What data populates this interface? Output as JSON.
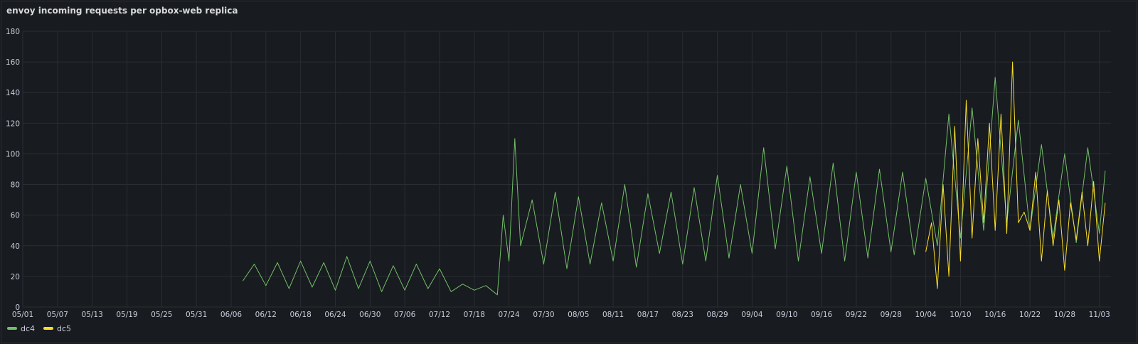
{
  "panel": {
    "title": "envoy incoming requests per opbox-web replica"
  },
  "colors": {
    "background": "#181b1f",
    "grid": "#2a2d33",
    "dc4": "#73bf69",
    "dc5": "#fade2a"
  },
  "legend": {
    "items": [
      {
        "label": "dc4",
        "color": "#73bf69"
      },
      {
        "label": "dc5",
        "color": "#fade2a"
      }
    ]
  },
  "chart_data": {
    "type": "line",
    "title": "envoy incoming requests per opbox-web replica",
    "xlabel": "",
    "ylabel": "",
    "ylim": [
      0,
      180
    ],
    "yticks": [
      0,
      20,
      40,
      60,
      80,
      100,
      120,
      140,
      160,
      180
    ],
    "xlim": [
      "05/01",
      "11/05"
    ],
    "xticks": [
      "05/01",
      "05/07",
      "05/13",
      "05/19",
      "05/25",
      "05/31",
      "06/06",
      "06/12",
      "06/18",
      "06/24",
      "06/30",
      "07/06",
      "07/12",
      "07/18",
      "07/24",
      "07/30",
      "08/05",
      "08/11",
      "08/17",
      "08/23",
      "08/29",
      "09/04",
      "09/10",
      "09/16",
      "09/22",
      "09/28",
      "10/04",
      "10/10",
      "10/16",
      "10/22",
      "10/28",
      "11/03"
    ],
    "grid": true,
    "legend_position": "bottom-left",
    "series": [
      {
        "name": "dc4",
        "color": "#73bf69",
        "x": [
          "06/08",
          "06/10",
          "06/12",
          "06/14",
          "06/16",
          "06/18",
          "06/20",
          "06/22",
          "06/24",
          "06/26",
          "06/28",
          "06/30",
          "07/02",
          "07/04",
          "07/06",
          "07/08",
          "07/10",
          "07/12",
          "07/14",
          "07/16",
          "07/18",
          "07/20",
          "07/22",
          "07/23",
          "07/24",
          "07/25",
          "07/26",
          "07/28",
          "07/30",
          "08/01",
          "08/03",
          "08/05",
          "08/07",
          "08/09",
          "08/11",
          "08/13",
          "08/15",
          "08/17",
          "08/19",
          "08/21",
          "08/23",
          "08/25",
          "08/27",
          "08/29",
          "08/31",
          "09/02",
          "09/04",
          "09/06",
          "09/08",
          "09/10",
          "09/12",
          "09/14",
          "09/16",
          "09/18",
          "09/20",
          "09/22",
          "09/24",
          "09/26",
          "09/28",
          "09/30",
          "10/02",
          "10/04",
          "10/06",
          "10/08",
          "10/10",
          "10/12",
          "10/14",
          "10/16",
          "10/18",
          "10/20",
          "10/22",
          "10/24",
          "10/26",
          "10/28",
          "10/30",
          "11/01",
          "11/03",
          "11/04"
        ],
        "y": [
          17,
          28,
          14,
          29,
          12,
          30,
          13,
          29,
          11,
          33,
          12,
          30,
          10,
          27,
          11,
          28,
          12,
          25,
          10,
          15,
          11,
          14,
          8,
          60,
          30,
          110,
          40,
          70,
          28,
          75,
          25,
          72,
          28,
          68,
          30,
          80,
          26,
          74,
          35,
          75,
          28,
          78,
          30,
          86,
          32,
          80,
          35,
          104,
          38,
          92,
          30,
          85,
          35,
          94,
          30,
          88,
          32,
          90,
          36,
          88,
          34,
          84,
          40,
          126,
          45,
          130,
          50,
          150,
          55,
          122,
          50,
          106,
          45,
          100,
          42,
          104,
          48,
          89
        ]
      },
      {
        "name": "dc5",
        "color": "#fade2a",
        "x": [
          "10/04",
          "10/05",
          "10/06",
          "10/07",
          "10/08",
          "10/09",
          "10/10",
          "10/11",
          "10/12",
          "10/13",
          "10/14",
          "10/15",
          "10/16",
          "10/17",
          "10/18",
          "10/19",
          "10/20",
          "10/21",
          "10/22",
          "10/23",
          "10/24",
          "10/25",
          "10/26",
          "10/27",
          "10/28",
          "10/29",
          "10/30",
          "10/31",
          "11/01",
          "11/02",
          "11/03",
          "11/04"
        ],
        "y": [
          36,
          55,
          12,
          80,
          20,
          118,
          30,
          135,
          45,
          110,
          55,
          120,
          50,
          126,
          48,
          160,
          55,
          62,
          50,
          88,
          30,
          76,
          40,
          70,
          24,
          68,
          44,
          75,
          40,
          82,
          30,
          68
        ]
      }
    ]
  }
}
